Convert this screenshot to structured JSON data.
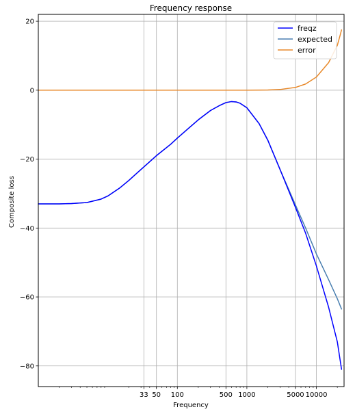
{
  "chart_data": {
    "type": "line",
    "title": "Frequency response",
    "xlabel": "Frequency",
    "ylabel": "Composite loss",
    "xscale": "log",
    "xlim": [
      1,
      25000
    ],
    "ylim": [
      -86,
      22
    ],
    "grid": true,
    "legend_position": "top-right",
    "x_ticks": [
      {
        "value": 33,
        "label": "33"
      },
      {
        "value": 50,
        "label": "50"
      },
      {
        "value": 100,
        "label": "100"
      },
      {
        "value": 500,
        "label": "500"
      },
      {
        "value": 1000,
        "label": "1000"
      },
      {
        "value": 5000,
        "label": "5000"
      },
      {
        "value": 10000,
        "label": "10000"
      }
    ],
    "y_ticks": [
      {
        "value": 20,
        "label": "20"
      },
      {
        "value": 0,
        "label": "0"
      },
      {
        "value": -20,
        "label": "−20"
      },
      {
        "value": -40,
        "label": "−40"
      },
      {
        "value": -60,
        "label": "−60"
      },
      {
        "value": -80,
        "label": "−80"
      }
    ],
    "series": [
      {
        "name": "freqz",
        "color": "#0000ff",
        "x": [
          1,
          2,
          3,
          5,
          8,
          10,
          15,
          20,
          30,
          50,
          80,
          100,
          150,
          200,
          300,
          400,
          500,
          600,
          700,
          800,
          1000,
          1500,
          2000,
          3000,
          5000,
          7000,
          10000,
          15000,
          20000,
          23000
        ],
        "y": [
          -33,
          -33,
          -32.9,
          -32.6,
          -31.6,
          -30.7,
          -28.3,
          -26.2,
          -23,
          -19,
          -15.7,
          -13.9,
          -10.8,
          -8.6,
          -5.9,
          -4.5,
          -3.6,
          -3.3,
          -3.4,
          -3.8,
          -5.1,
          -9.7,
          -14.5,
          -23,
          -34,
          -41.5,
          -51,
          -63,
          -73,
          -81
        ]
      },
      {
        "name": "expected",
        "color": "#4a7fb0",
        "x": [
          1,
          2,
          3,
          5,
          8,
          10,
          15,
          20,
          30,
          50,
          80,
          100,
          150,
          200,
          300,
          400,
          500,
          600,
          700,
          800,
          1000,
          1500,
          2000,
          3000,
          5000,
          7000,
          10000,
          15000,
          20000,
          23000
        ],
        "y": [
          -33,
          -33,
          -32.9,
          -32.6,
          -31.6,
          -30.7,
          -28.3,
          -26.2,
          -23,
          -19,
          -15.7,
          -13.9,
          -10.8,
          -8.6,
          -5.9,
          -4.5,
          -3.6,
          -3.3,
          -3.4,
          -3.8,
          -5.1,
          -9.7,
          -14.5,
          -23,
          -33.3,
          -40,
          -47.5,
          -55,
          -60.5,
          -63.5
        ]
      },
      {
        "name": "error",
        "color": "#e8892a",
        "x": [
          1,
          10,
          100,
          500,
          1000,
          2000,
          3000,
          5000,
          7000,
          10000,
          15000,
          20000,
          22000,
          23000
        ],
        "y": [
          0,
          0,
          0,
          0,
          0,
          0.05,
          0.2,
          0.8,
          1.8,
          3.8,
          8,
          13,
          16,
          17.5
        ]
      }
    ]
  }
}
